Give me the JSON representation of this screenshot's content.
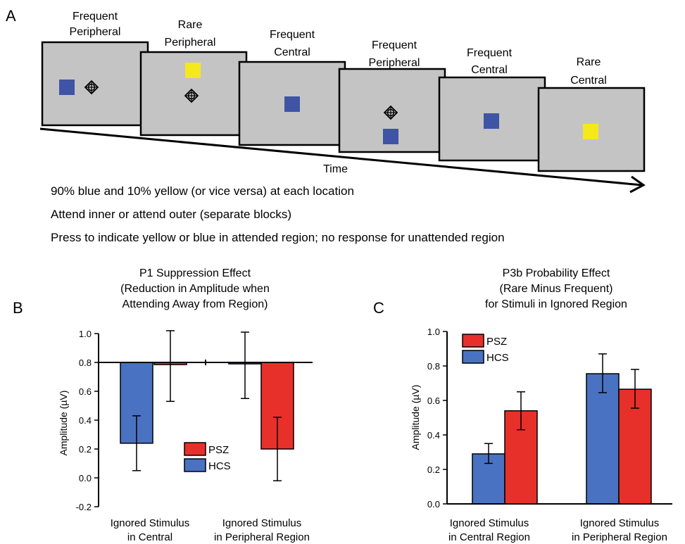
{
  "panel_a": {
    "letter": "A",
    "screens": [
      {
        "label_lines": [
          "Frequent",
          "Peripheral"
        ]
      },
      {
        "label_lines": [
          "Rare",
          "Peripheral"
        ]
      },
      {
        "label_lines": [
          "Frequent",
          "Central"
        ]
      },
      {
        "label_lines": [
          "Frequent",
          "Peripheral"
        ]
      },
      {
        "label_lines": [
          "Frequent",
          "Central"
        ]
      },
      {
        "label_lines": [
          "Rare",
          "Central"
        ]
      }
    ],
    "time_label": "Time",
    "notes": [
      "90% blue and 10% yellow (or vice versa) at each location",
      "Attend inner or attend outer (separate blocks)",
      "Press to indicate yellow or blue in attended region; no response for unattended region"
    ],
    "colors": {
      "screen": "#c4c4c4",
      "blue": "#3f54a4",
      "yellow": "#f5e81b"
    }
  },
  "chart_data": [
    {
      "panel": "B",
      "type": "bar",
      "title_lines": [
        "P1 Suppression Effect",
        "(Reduction in Amplitude when",
        "Attending Away from Region)"
      ],
      "ylabel": "Amplitude (µV)",
      "ylim": [
        -0.2,
        1.0
      ],
      "yticks": [
        "-0.2",
        "0.0",
        "0.2",
        "0.4",
        "0.6",
        "0.8",
        "1.0"
      ],
      "ytick_values": [
        -0.2,
        0.0,
        0.2,
        0.4,
        0.6,
        0.8,
        1.0
      ],
      "baseline": 0.8,
      "categories": [
        [
          "Ignored Stimulus",
          "in Central"
        ],
        [
          "Ignored Stimulus",
          "in Peripheral Region"
        ]
      ],
      "series": [
        {
          "name": "HCS",
          "color": "#4a72c2",
          "values": [
            0.24,
            0.79
          ],
          "err_low": [
            0.05,
            0.55
          ],
          "err_high": [
            0.43,
            1.01
          ]
        },
        {
          "name": "PSZ",
          "color": "#e8302a",
          "values": [
            0.785,
            0.2
          ],
          "err_low": [
            0.53,
            -0.02
          ],
          "err_high": [
            1.02,
            0.42
          ]
        }
      ],
      "legend": [
        {
          "name": "PSZ",
          "color": "#e8302a"
        },
        {
          "name": "HCS",
          "color": "#4a72c2"
        }
      ],
      "legend_position": "center"
    },
    {
      "panel": "C",
      "type": "bar",
      "title_lines": [
        "P3b Probability Effect",
        "(Rare Minus Frequent)",
        "for Stimuli in Ignored Region"
      ],
      "ylabel": "Amplitude (µV)",
      "ylim": [
        0.0,
        1.0
      ],
      "yticks": [
        "0.0",
        "0.2",
        "0.4",
        "0.6",
        "0.8",
        "1.0"
      ],
      "ytick_values": [
        0.0,
        0.2,
        0.4,
        0.6,
        0.8,
        1.0
      ],
      "baseline": 0.0,
      "categories": [
        [
          "Ignored Stimulus",
          "in Central Region"
        ],
        [
          "Ignored Stimulus",
          "in Peripheral Region"
        ]
      ],
      "series": [
        {
          "name": "HCS",
          "color": "#4a72c2",
          "values": [
            0.29,
            0.755
          ],
          "err_low": [
            0.235,
            0.645
          ],
          "err_high": [
            0.35,
            0.87
          ]
        },
        {
          "name": "PSZ",
          "color": "#e8302a",
          "values": [
            0.54,
            0.665
          ],
          "err_low": [
            0.43,
            0.555
          ],
          "err_high": [
            0.65,
            0.78
          ]
        }
      ],
      "legend": [
        {
          "name": "PSZ",
          "color": "#e8302a"
        },
        {
          "name": "HCS",
          "color": "#4a72c2"
        }
      ],
      "legend_position": "top-left"
    }
  ]
}
